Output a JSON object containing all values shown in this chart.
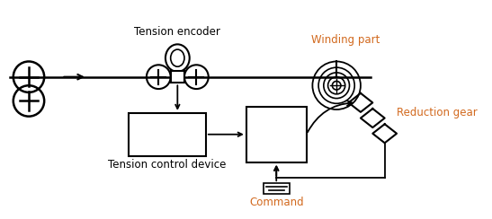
{
  "bg_color": "#ffffff",
  "line_color": "#000000",
  "orange_color": "#D2691E",
  "label_tension_encoder": "Tension encoder",
  "label_winding_part": "Winding part",
  "label_reduction_gear": "Reduction gear",
  "label_tension_control": "Tension control device",
  "label_command": "Command",
  "figsize": [
    5.47,
    2.44
  ],
  "dpi": 100
}
